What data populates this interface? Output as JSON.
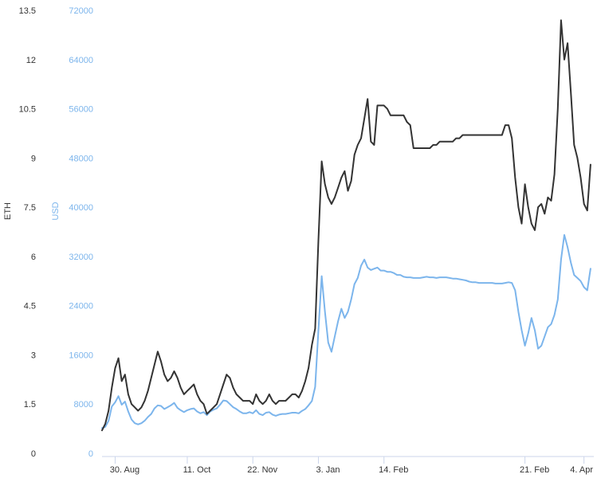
{
  "chart_data": {
    "type": "line",
    "title": "",
    "xlabel": "",
    "y_left_label": "ETH",
    "y_right_label": "USD",
    "y_left_ticks": [
      "0",
      "1.5",
      "3",
      "4.5",
      "6",
      "7.5",
      "9",
      "10.5",
      "12",
      "13.5"
    ],
    "y_right_ticks": [
      "0",
      "8000",
      "16000",
      "24000",
      "32000",
      "40000",
      "48000",
      "56000",
      "64000",
      "72000"
    ],
    "y_left_lim": [
      0,
      13.5
    ],
    "y_right_lim": [
      0,
      72000
    ],
    "x_ticks": [
      "30. Aug",
      "11. Oct",
      "22. Nov",
      "3. Jan",
      "14. Feb",
      "21. Feb",
      "4. Apr"
    ],
    "x_tick_index": [
      4,
      26,
      46,
      66,
      86,
      129,
      147
    ],
    "x_range": [
      0,
      150
    ],
    "grid": false,
    "colors": {
      "eth": "#333333",
      "usd": "#7cb5ec",
      "left_tick": "#333333",
      "right_tick": "#7cb5ec"
    },
    "series": [
      {
        "name": "ETH",
        "axis": "left",
        "values": [
          0.7,
          0.9,
          1.3,
          2.0,
          2.6,
          2.9,
          2.2,
          2.4,
          1.8,
          1.5,
          1.4,
          1.3,
          1.4,
          1.6,
          1.9,
          2.3,
          2.7,
          3.1,
          2.8,
          2.4,
          2.2,
          2.3,
          2.5,
          2.3,
          2.0,
          1.8,
          1.9,
          2.0,
          2.1,
          1.8,
          1.6,
          1.5,
          1.2,
          1.3,
          1.4,
          1.5,
          1.8,
          2.1,
          2.4,
          2.3,
          2.0,
          1.8,
          1.7,
          1.6,
          1.6,
          1.6,
          1.5,
          1.8,
          1.6,
          1.5,
          1.6,
          1.8,
          1.6,
          1.5,
          1.6,
          1.6,
          1.6,
          1.7,
          1.8,
          1.8,
          1.7,
          1.9,
          2.2,
          2.6,
          3.3,
          3.8,
          6.5,
          8.9,
          8.2,
          7.8,
          7.6,
          7.8,
          8.1,
          8.4,
          8.6,
          8.0,
          8.3,
          9.1,
          9.4,
          9.6,
          10.2,
          10.8,
          9.5,
          9.4,
          10.6,
          10.6,
          10.6,
          10.5,
          10.3,
          10.3,
          10.3,
          10.3,
          10.3,
          10.1,
          10.0,
          9.3,
          9.3,
          9.3,
          9.3,
          9.3,
          9.3,
          9.4,
          9.4,
          9.5,
          9.5,
          9.5,
          9.5,
          9.5,
          9.6,
          9.6,
          9.7,
          9.7,
          9.7,
          9.7,
          9.7,
          9.7,
          9.7,
          9.7,
          9.7,
          9.7,
          9.7,
          9.7,
          9.7,
          10.0,
          10.0,
          9.6,
          8.4,
          7.5,
          7.0,
          8.2,
          7.5,
          7.0,
          6.8,
          7.5,
          7.6,
          7.3,
          7.8,
          7.7,
          8.5,
          10.5,
          13.2,
          12.0,
          12.5,
          11.0,
          9.4,
          9.0,
          8.4,
          7.6,
          7.4,
          8.8
        ]
      },
      {
        "name": "USD",
        "axis": "right",
        "values": [
          4100,
          4300,
          5300,
          7600,
          8300,
          9300,
          7900,
          8400,
          6800,
          5500,
          4900,
          4700,
          4900,
          5300,
          5900,
          6400,
          7300,
          7800,
          7700,
          7200,
          7500,
          7800,
          8200,
          7400,
          7000,
          6700,
          7000,
          7200,
          7300,
          6800,
          6500,
          6700,
          6200,
          6800,
          7100,
          7300,
          7900,
          8600,
          8500,
          8000,
          7500,
          7200,
          6800,
          6500,
          6500,
          6700,
          6500,
          7000,
          6400,
          6200,
          6600,
          6700,
          6300,
          6100,
          6300,
          6400,
          6400,
          6500,
          6600,
          6600,
          6500,
          6900,
          7200,
          7800,
          8500,
          10800,
          20000,
          28800,
          23000,
          18000,
          16500,
          19000,
          21500,
          23500,
          22000,
          23000,
          25000,
          27500,
          28500,
          30500,
          31500,
          30200,
          29800,
          30000,
          30200,
          29700,
          29700,
          29500,
          29500,
          29300,
          29000,
          29000,
          28700,
          28600,
          28600,
          28500,
          28500,
          28500,
          28600,
          28700,
          28600,
          28600,
          28500,
          28600,
          28600,
          28600,
          28500,
          28400,
          28400,
          28300,
          28200,
          28100,
          27900,
          27800,
          27800,
          27700,
          27700,
          27700,
          27700,
          27700,
          27600,
          27600,
          27600,
          27700,
          27800,
          27700,
          26500,
          23000,
          20000,
          17500,
          19500,
          22000,
          20000,
          17000,
          17500,
          19000,
          20500,
          21000,
          22500,
          25000,
          31500,
          35500,
          33500,
          31000,
          29000,
          28500,
          28000,
          27000,
          26500,
          30000
        ]
      }
    ]
  }
}
